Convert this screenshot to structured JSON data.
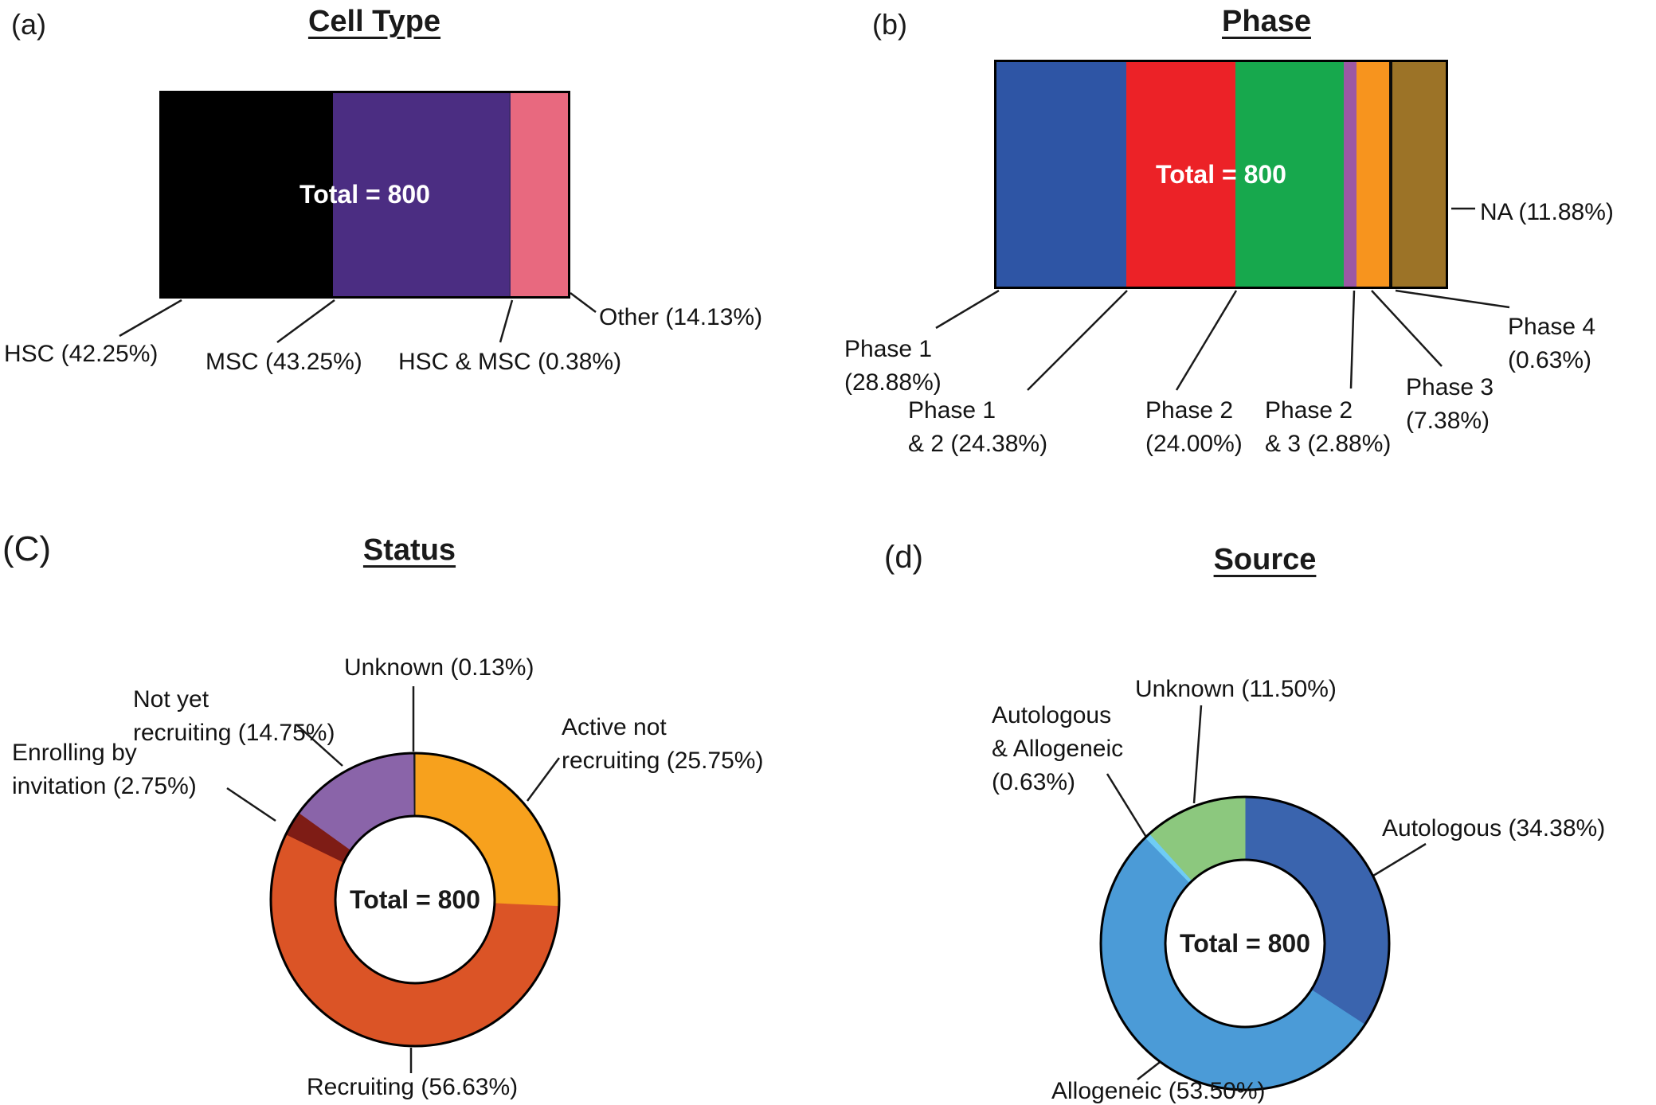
{
  "figure": {
    "background": "#ffffff",
    "panels": {
      "cell_type": {
        "letter": "(a)",
        "title": "Cell Type",
        "total_label": "Total = 800"
      },
      "phase": {
        "letter": "(b)",
        "title": "Phase",
        "total_label": "Total = 800"
      },
      "status": {
        "letter": "(C)",
        "title": "Status",
        "total_label": "Total = 800"
      },
      "source": {
        "letter": "(d)",
        "title": "Source",
        "total_label": "Total = 800"
      }
    }
  },
  "chart_data": [
    {
      "id": "cell_type",
      "type": "bar",
      "subtype": "100pct_stacked_bar",
      "title": "Cell Type",
      "total": 800,
      "total_label": "Total = 800",
      "legend_position": "callout-labels",
      "slices": [
        {
          "name": "HSC",
          "pct": 42.25,
          "color": "#000000",
          "label": "HSC (42.25%)",
          "label_lines": [
            "HSC (42.25%)"
          ]
        },
        {
          "name": "MSC",
          "pct": 43.25,
          "color": "#4B2D82",
          "label": "MSC (43.25%)",
          "label_lines": [
            "MSC (43.25%)"
          ]
        },
        {
          "name": "HSC & MSC",
          "pct": 0.38,
          "color": "#3F2A6E",
          "label": "HSC & MSC (0.38%)",
          "label_lines": [
            "HSC & MSC (0.38%)"
          ]
        },
        {
          "name": "Other",
          "pct": 14.13,
          "color": "#E8697F",
          "label": "Other (14.13%)",
          "label_lines": [
            "Other (14.13%)"
          ]
        }
      ]
    },
    {
      "id": "phase",
      "type": "bar",
      "subtype": "100pct_stacked_bar",
      "title": "Phase",
      "total": 800,
      "total_label": "Total = 800",
      "legend_position": "callout-labels",
      "slices": [
        {
          "name": "Phase 1",
          "pct": 28.88,
          "color": "#2E55A5",
          "label": "Phase 1 (28.88%)",
          "label_lines": [
            "Phase 1",
            "(28.88%)"
          ]
        },
        {
          "name": "Phase 1 & 2",
          "pct": 24.38,
          "color": "#EC2227",
          "label": "Phase 1 & 2 (24.38%)",
          "label_lines": [
            "Phase 1",
            "& 2 (24.38%)"
          ]
        },
        {
          "name": "Phase 2",
          "pct": 24.0,
          "color": "#17A84D",
          "label": "Phase 2 (24.00%)",
          "label_lines": [
            "Phase 2",
            "(24.00%)"
          ]
        },
        {
          "name": "Phase 2 & 3",
          "pct": 2.88,
          "color": "#9C58A4",
          "label": "Phase 2 & 3 (2.88%)",
          "label_lines": [
            "Phase 2",
            "& 3 (2.88%)"
          ]
        },
        {
          "name": "Phase 3",
          "pct": 7.38,
          "color": "#F7941E",
          "label": "Phase 3 (7.38%)",
          "label_lines": [
            "Phase 3",
            "(7.38%)"
          ]
        },
        {
          "name": "Phase 4",
          "pct": 0.63,
          "color": "#0B0B0B",
          "label": "Phase 4 (0.63%)",
          "label_lines": [
            "Phase 4",
            "(0.63%)"
          ]
        },
        {
          "name": "NA",
          "pct": 11.88,
          "color": "#9C7327",
          "label": "NA (11.88%)",
          "label_lines": [
            "NA (11.88%)"
          ]
        }
      ]
    },
    {
      "id": "status",
      "type": "pie",
      "subtype": "donut",
      "title": "Status",
      "total": 800,
      "total_label": "Total = 800",
      "start_angle_deg": 0,
      "direction": "clockwise",
      "legend_position": "callout-labels",
      "slices": [
        {
          "name": "Active not recruiting",
          "pct": 25.75,
          "color": "#F7A11D",
          "label": "Active not recruiting (25.75%)",
          "label_lines": [
            "Active not",
            "recruiting (25.75%)"
          ]
        },
        {
          "name": "Recruiting",
          "pct": 56.63,
          "color": "#DB5426",
          "label": "Recruiting (56.63%)",
          "label_lines": [
            "Recruiting (56.63%)"
          ]
        },
        {
          "name": "Enrolling by invitation",
          "pct": 2.75,
          "color": "#7E1C15",
          "label": "Enrolling by invitation (2.75%)",
          "label_lines": [
            "Enrolling by",
            "invitation (2.75%)"
          ]
        },
        {
          "name": "Not yet recruiting",
          "pct": 14.75,
          "color": "#8A64A9",
          "label": "Not yet recruiting (14.75%)",
          "label_lines": [
            "Not yet",
            "recruiting (14.75%)"
          ]
        },
        {
          "name": "Unknown",
          "pct": 0.13,
          "color": "#1A1A1A",
          "label": "Unknown (0.13%)",
          "label_lines": [
            "Unknown (0.13%)"
          ]
        }
      ]
    },
    {
      "id": "source",
      "type": "pie",
      "subtype": "donut",
      "title": "Source",
      "total": 800,
      "total_label": "Total = 800",
      "start_angle_deg": 0,
      "direction": "clockwise",
      "legend_position": "callout-labels",
      "slices": [
        {
          "name": "Autologous",
          "pct": 34.38,
          "color": "#3A64AE",
          "label": "Autologous (34.38%)",
          "label_lines": [
            "Autologous (34.38%)"
          ]
        },
        {
          "name": "Allogeneic",
          "pct": 53.5,
          "color": "#4B9BD7",
          "label": "Allogeneic (53.50%)",
          "label_lines": [
            "Allogeneic (53.50%)"
          ]
        },
        {
          "name": "Autologous & Allogeneic",
          "pct": 0.63,
          "color": "#6FCCF5",
          "label": "Autologous & Allogeneic (0.63%)",
          "label_lines": [
            "Autologous",
            "& Allogeneic",
            "(0.63%)"
          ]
        },
        {
          "name": "Unknown",
          "pct": 11.5,
          "color": "#8CC87E",
          "label": "Unknown (11.50%)",
          "label_lines": [
            "Unknown (11.50%)"
          ]
        }
      ]
    }
  ]
}
